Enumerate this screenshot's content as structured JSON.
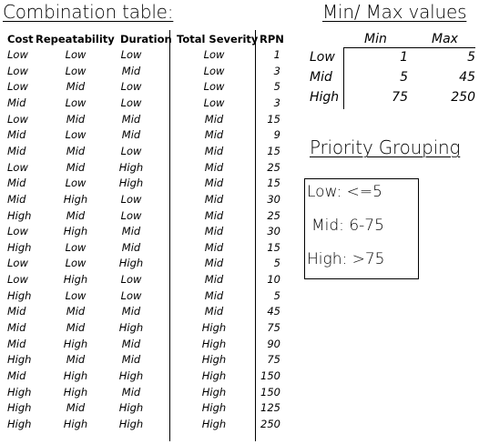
{
  "combination": {
    "title": "Combination table:",
    "headers": {
      "cost": "Cost",
      "repeatability": "Repeatability",
      "duration": "Duration",
      "total_severity": "Total Severity",
      "rpn": "RPN"
    },
    "rows": [
      {
        "cost": "Low",
        "repeatability": "Low",
        "duration": "Low",
        "total_severity": "Low",
        "rpn": "1"
      },
      {
        "cost": "Low",
        "repeatability": "Low",
        "duration": "Mid",
        "total_severity": "Low",
        "rpn": "3"
      },
      {
        "cost": "Low",
        "repeatability": "Mid",
        "duration": "Low",
        "total_severity": "Low",
        "rpn": "5"
      },
      {
        "cost": "Mid",
        "repeatability": "Low",
        "duration": "Low",
        "total_severity": "Low",
        "rpn": "3"
      },
      {
        "cost": "Low",
        "repeatability": "Mid",
        "duration": "Mid",
        "total_severity": "Mid",
        "rpn": "15"
      },
      {
        "cost": "Mid",
        "repeatability": "Low",
        "duration": "Mid",
        "total_severity": "Mid",
        "rpn": "9"
      },
      {
        "cost": "Mid",
        "repeatability": "Mid",
        "duration": "Low",
        "total_severity": "Mid",
        "rpn": "15"
      },
      {
        "cost": "Low",
        "repeatability": "Mid",
        "duration": "High",
        "total_severity": "Mid",
        "rpn": "25"
      },
      {
        "cost": "Mid",
        "repeatability": "Low",
        "duration": "High",
        "total_severity": "Mid",
        "rpn": "15"
      },
      {
        "cost": "Mid",
        "repeatability": "High",
        "duration": "Low",
        "total_severity": "Mid",
        "rpn": "30"
      },
      {
        "cost": "High",
        "repeatability": "Mid",
        "duration": "Low",
        "total_severity": "Mid",
        "rpn": "25"
      },
      {
        "cost": "Low",
        "repeatability": "High",
        "duration": "Mid",
        "total_severity": "Mid",
        "rpn": "30"
      },
      {
        "cost": "High",
        "repeatability": "Low",
        "duration": "Mid",
        "total_severity": "Mid",
        "rpn": "15"
      },
      {
        "cost": "Low",
        "repeatability": "Low",
        "duration": "High",
        "total_severity": "Mid",
        "rpn": "5"
      },
      {
        "cost": "Low",
        "repeatability": "High",
        "duration": "Low",
        "total_severity": "Mid",
        "rpn": "10"
      },
      {
        "cost": "High",
        "repeatability": "Low",
        "duration": "Low",
        "total_severity": "Mid",
        "rpn": "5"
      },
      {
        "cost": "Mid",
        "repeatability": "Mid",
        "duration": "Mid",
        "total_severity": "Mid",
        "rpn": "45"
      },
      {
        "cost": "Mid",
        "repeatability": "Mid",
        "duration": "High",
        "total_severity": "High",
        "rpn": "75"
      },
      {
        "cost": "Mid",
        "repeatability": "High",
        "duration": "Mid",
        "total_severity": "High",
        "rpn": "90"
      },
      {
        "cost": "High",
        "repeatability": "Mid",
        "duration": "Mid",
        "total_severity": "High",
        "rpn": "75"
      },
      {
        "cost": "Mid",
        "repeatability": "High",
        "duration": "High",
        "total_severity": "High",
        "rpn": "150"
      },
      {
        "cost": "High",
        "repeatability": "High",
        "duration": "Mid",
        "total_severity": "High",
        "rpn": "150"
      },
      {
        "cost": "High",
        "repeatability": "Mid",
        "duration": "High",
        "total_severity": "High",
        "rpn": "125"
      },
      {
        "cost": "High",
        "repeatability": "High",
        "duration": "High",
        "total_severity": "High",
        "rpn": "250"
      }
    ]
  },
  "minmax": {
    "title": "Min/ Max values",
    "headers": {
      "min": "Min",
      "max": "Max"
    },
    "rows": [
      {
        "label": "Low",
        "min": "1",
        "max": "5"
      },
      {
        "label": "Mid",
        "min": "5",
        "max": "45"
      },
      {
        "label": "High",
        "min": "75",
        "max": "250"
      }
    ]
  },
  "priority": {
    "title": "Priority Grouping",
    "low": "Low: <=5",
    "mid": "Mid: 6-75",
    "high": "High: >75"
  }
}
